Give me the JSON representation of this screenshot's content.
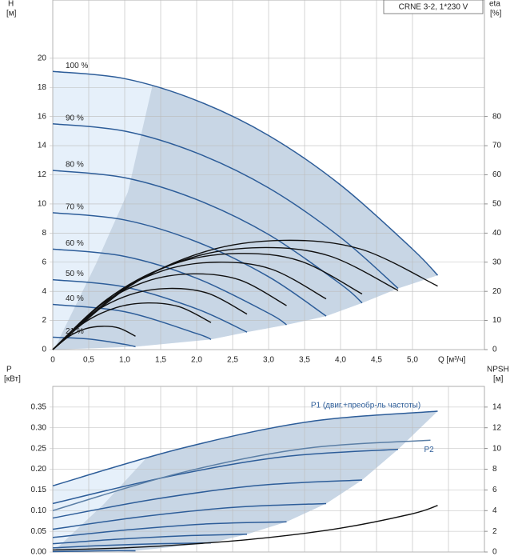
{
  "chart_data": [
    {
      "type": "line",
      "ylabel": "H",
      "yunit": "[м]",
      "y2label": "eta",
      "y2unit": "[%]",
      "xlabel": "Q [м³/ч]",
      "legend_title": "CRNE 3-2, 1*230 V",
      "xlim": [
        0,
        6
      ],
      "ylim": [
        0,
        24
      ],
      "y2lim": [
        0,
        120
      ],
      "xticks": [
        0,
        {
          "value": 0.5,
          "label": "0,5"
        },
        {
          "value": 1,
          "label": "1,0"
        },
        {
          "value": 1.5,
          "label": "1,5"
        },
        {
          "value": 2,
          "label": "2,0"
        },
        {
          "value": 2.5,
          "label": "2,5"
        },
        {
          "value": 3,
          "label": "3,0"
        },
        {
          "value": 3.5,
          "label": "3,5"
        },
        {
          "value": 4,
          "label": "4,0"
        },
        {
          "value": 4.5,
          "label": "4,5"
        },
        {
          "value": 5,
          "label": "5,0"
        }
      ],
      "xtick_labels": true,
      "series_label_position": "start",
      "yticks": [
        0,
        2,
        4,
        6,
        8,
        10,
        12,
        14,
        16,
        18,
        20
      ],
      "y2ticks": [
        0,
        10,
        20,
        30,
        40,
        50,
        60,
        70,
        80
      ],
      "grid": true,
      "series": [
        {
          "name": "100 %",
          "color": "#2d5d99",
          "x": [
            0,
            1,
            2,
            3,
            4,
            5,
            5.35
          ],
          "values": [
            19.1,
            18.6,
            17.1,
            14.7,
            11.3,
            6.9,
            5.1
          ]
        },
        {
          "name": "90 %",
          "color": "#2d5d99",
          "x": [
            0,
            1,
            2,
            3,
            4,
            4.8
          ],
          "values": [
            15.5,
            15.0,
            13.5,
            11.1,
            7.7,
            4.2
          ]
        },
        {
          "name": "80 %",
          "color": "#2d5d99",
          "x": [
            0,
            1,
            2,
            3,
            4,
            4.3
          ],
          "values": [
            12.3,
            11.8,
            10.3,
            7.9,
            4.5,
            3.2
          ]
        },
        {
          "name": "70 %",
          "color": "#2d5d99",
          "x": [
            0,
            1,
            2,
            3,
            3.8
          ],
          "values": [
            9.4,
            8.9,
            7.4,
            5.0,
            2.3
          ]
        },
        {
          "name": "60 %",
          "color": "#2d5d99",
          "x": [
            0,
            1,
            2,
            3,
            3.25
          ],
          "values": [
            6.9,
            6.4,
            4.9,
            2.5,
            1.7
          ]
        },
        {
          "name": "50 %",
          "color": "#2d5d99",
          "x": [
            0,
            1,
            2,
            2.7
          ],
          "values": [
            4.8,
            4.3,
            2.8,
            1.2
          ]
        },
        {
          "name": "40 %",
          "color": "#2d5d99",
          "x": [
            0,
            1,
            2,
            2.2
          ],
          "values": [
            3.1,
            2.6,
            1.1,
            0.7
          ]
        },
        {
          "name": "21 %",
          "color": "#2d5d99",
          "x": [
            0,
            0.5,
            1,
            1.15
          ],
          "values": [
            0.85,
            0.73,
            0.36,
            0.2
          ]
        },
        {
          "axis": "y2",
          "color": "#111111",
          "x": [
            0,
            1.07,
            2.14,
            3.21,
            4.28,
            5.35
          ],
          "values": [
            0,
            21.8,
            33.8,
            37.5,
            34.5,
            21.8
          ]
        },
        {
          "axis": "y2",
          "color": "#111111",
          "x": [
            0,
            0.96,
            1.92,
            2.88,
            3.84,
            4.8
          ],
          "values": [
            0,
            20.3,
            31.5,
            35,
            32.2,
            20.3
          ]
        },
        {
          "axis": "y2",
          "color": "#111111",
          "x": [
            0,
            0.86,
            1.72,
            2.58,
            3.44,
            4.3
          ],
          "values": [
            0,
            19.1,
            29.7,
            33,
            30.4,
            19.1
          ]
        },
        {
          "axis": "y2",
          "color": "#111111",
          "x": [
            0,
            0.76,
            1.52,
            2.28,
            3.04,
            3.8
          ],
          "values": [
            0,
            17.4,
            27,
            30,
            27.6,
            17.4
          ]
        },
        {
          "axis": "y2",
          "color": "#111111",
          "x": [
            0,
            0.65,
            1.3,
            1.95,
            2.6,
            3.25
          ],
          "values": [
            0,
            15.1,
            23.4,
            26,
            23.9,
            15.1
          ]
        },
        {
          "axis": "y2",
          "color": "#111111",
          "x": [
            0,
            0.54,
            1.08,
            1.62,
            2.16,
            2.7
          ],
          "values": [
            0,
            12.2,
            18.9,
            21,
            19.3,
            12.2
          ]
        },
        {
          "axis": "y2",
          "color": "#111111",
          "x": [
            0,
            0.44,
            0.88,
            1.32,
            1.76,
            2.2
          ],
          "values": [
            0,
            9.3,
            14.4,
            16,
            14.7,
            9.3
          ]
        },
        {
          "axis": "y2",
          "color": "#111111",
          "x": [
            0,
            0.23,
            0.46,
            0.69,
            0.92,
            1.15
          ],
          "values": [
            0,
            4.6,
            7.2,
            8,
            7.4,
            4.6
          ]
        }
      ]
    },
    {
      "type": "line",
      "ylabel": "P",
      "yunit": "[кВт]",
      "y2label": "NPSH",
      "y2unit": "[м]",
      "xlim": [
        0,
        6
      ],
      "ylim": [
        0,
        0.4
      ],
      "y2lim": [
        0,
        16
      ],
      "xticks": [
        0,
        0.5,
        1,
        1.5,
        2,
        2.5,
        3,
        3.5,
        4,
        4.5,
        5,
        5.5
      ],
      "xtick_labels": false,
      "series_label_position": "end",
      "yticks": [
        {
          "value": 0,
          "label": "0.00"
        },
        0.05,
        {
          "value": 0.1,
          "label": "0.10"
        },
        0.15,
        {
          "value": 0.2,
          "label": "0.20"
        },
        0.25,
        {
          "value": 0.3,
          "label": "0.30"
        },
        0.35
      ],
      "y2ticks": [
        0,
        2,
        4,
        6,
        8,
        10,
        12,
        14
      ],
      "grid": true,
      "series": [
        {
          "name": "P1 (двиг.+преобр-ль частоты)",
          "color": "#2d5d99",
          "x": [
            0,
            1.78,
            3.57,
            5.35
          ],
          "values": [
            0.16,
            0.25,
            0.315,
            0.34
          ]
        },
        {
          "color": "#2d5d99",
          "x": [
            0,
            1.6,
            3.2,
            4.8
          ],
          "values": [
            0.117,
            0.182,
            0.23,
            0.248
          ]
        },
        {
          "color": "#2d5d99",
          "x": [
            0,
            1.43,
            2.87,
            4.3
          ],
          "values": [
            0.082,
            0.128,
            0.161,
            0.174
          ]
        },
        {
          "color": "#2d5d99",
          "x": [
            0,
            1.27,
            2.53,
            3.8
          ],
          "values": [
            0.055,
            0.086,
            0.108,
            0.117
          ]
        },
        {
          "color": "#2d5d99",
          "x": [
            0,
            1.08,
            2.17,
            3.25
          ],
          "values": [
            0.035,
            0.054,
            0.068,
            0.073
          ]
        },
        {
          "color": "#2d5d99",
          "x": [
            0,
            0.9,
            1.8,
            2.7
          ],
          "values": [
            0.02,
            0.031,
            0.039,
            0.043
          ]
        },
        {
          "color": "#2d5d99",
          "x": [
            0,
            0.73,
            1.47,
            2.2
          ],
          "values": [
            0.01,
            0.016,
            0.02,
            0.022
          ]
        },
        {
          "color": "#2d5d99",
          "x": [
            0,
            0.38,
            0.77,
            1.15
          ],
          "values": [
            0.001,
            0.002,
            0.003,
            0.003
          ]
        },
        {
          "name": "P2",
          "color": "#5b7fa6",
          "x": [
            0,
            1.75,
            3.5,
            5.25
          ],
          "values": [
            0.1,
            0.19,
            0.25,
            0.27
          ]
        },
        {
          "axis": "y2",
          "color": "#111111",
          "x": [
            0,
            1,
            2,
            3,
            4,
            5,
            5.35
          ],
          "values": [
            0.2,
            0.4,
            0.8,
            1.4,
            2.3,
            3.7,
            4.5
          ]
        }
      ]
    }
  ]
}
